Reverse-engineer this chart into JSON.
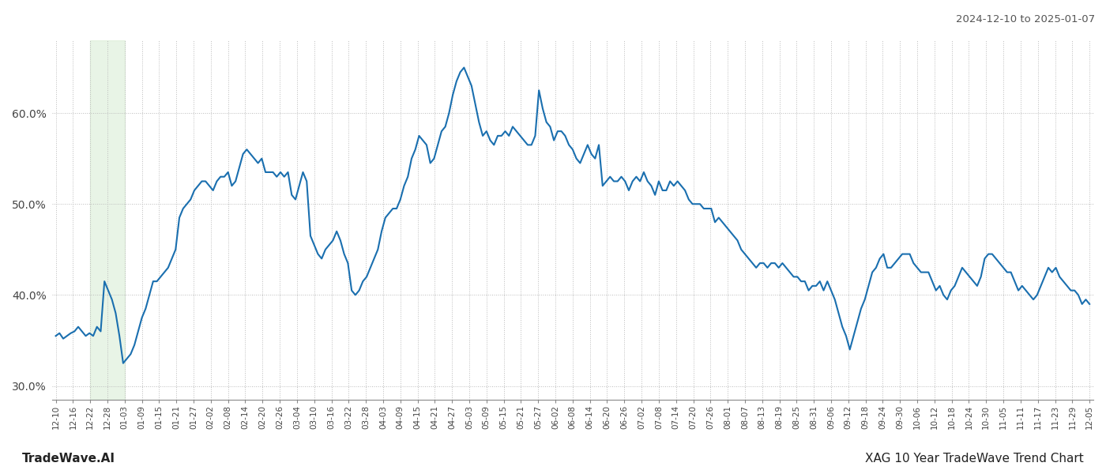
{
  "title_top_right": "2024-12-10 to 2025-01-07",
  "title_bottom_right": "XAG 10 Year TradeWave Trend Chart",
  "title_bottom_left": "TradeWave.AI",
  "line_color": "#1a6faf",
  "line_width": 1.5,
  "shade_color": "#d6ecd2",
  "shade_alpha": 0.55,
  "background_color": "#ffffff",
  "grid_color": "#bbbbbb",
  "ylim_min": 28.5,
  "ylim_max": 68.0,
  "yticks": [
    30.0,
    40.0,
    50.0,
    60.0
  ],
  "ytick_labels": [
    "30.0%",
    "40.0%",
    "50.0%",
    "60.0%"
  ],
  "x_labels": [
    "12-10",
    "12-16",
    "12-22",
    "12-28",
    "01-03",
    "01-09",
    "01-15",
    "01-21",
    "01-27",
    "02-02",
    "02-08",
    "02-14",
    "02-20",
    "02-26",
    "03-04",
    "03-10",
    "03-16",
    "03-22",
    "03-28",
    "04-03",
    "04-09",
    "04-15",
    "04-21",
    "04-27",
    "05-03",
    "05-09",
    "05-15",
    "05-21",
    "05-27",
    "06-02",
    "06-08",
    "06-14",
    "06-20",
    "06-26",
    "07-02",
    "07-08",
    "07-14",
    "07-20",
    "07-26",
    "08-01",
    "08-07",
    "08-13",
    "08-19",
    "08-25",
    "08-31",
    "09-06",
    "09-12",
    "09-18",
    "09-24",
    "09-30",
    "10-06",
    "10-12",
    "10-18",
    "10-24",
    "10-30",
    "11-05",
    "11-11",
    "11-17",
    "11-23",
    "11-29",
    "12-05"
  ],
  "shade_label_start": "12-22",
  "shade_label_end": "01-03",
  "y_values": [
    35.5,
    35.8,
    35.2,
    35.5,
    35.8,
    36.0,
    36.5,
    36.0,
    35.5,
    35.8,
    35.5,
    36.5,
    36.0,
    41.5,
    40.5,
    39.5,
    38.0,
    35.5,
    32.5,
    33.0,
    33.5,
    34.5,
    36.0,
    37.5,
    38.5,
    40.0,
    41.5,
    41.5,
    42.0,
    42.5,
    43.0,
    44.0,
    45.0,
    48.5,
    49.5,
    50.0,
    50.5,
    51.5,
    52.0,
    52.5,
    52.5,
    52.0,
    51.5,
    52.5,
    53.0,
    53.0,
    53.5,
    52.0,
    52.5,
    54.0,
    55.5,
    56.0,
    55.5,
    55.0,
    54.5,
    55.0,
    53.5,
    53.5,
    53.5,
    53.0,
    53.5,
    53.0,
    53.5,
    51.0,
    50.5,
    52.0,
    53.5,
    52.5,
    46.5,
    45.5,
    44.5,
    44.0,
    45.0,
    45.5,
    46.0,
    47.0,
    46.0,
    44.5,
    43.5,
    40.5,
    40.0,
    40.5,
    41.5,
    42.0,
    43.0,
    44.0,
    45.0,
    47.0,
    48.5,
    49.0,
    49.5,
    49.5,
    50.5,
    52.0,
    53.0,
    55.0,
    56.0,
    57.5,
    57.0,
    56.5,
    54.5,
    55.0,
    56.5,
    58.0,
    58.5,
    60.0,
    62.0,
    63.5,
    64.5,
    65.0,
    64.0,
    63.0,
    61.0,
    59.0,
    57.5,
    58.0,
    57.0,
    56.5,
    57.5,
    57.5,
    58.0,
    57.5,
    58.5,
    58.0,
    57.5,
    57.0,
    56.5,
    56.5,
    57.5,
    62.5,
    60.5,
    59.0,
    58.5,
    57.0,
    58.0,
    58.0,
    57.5,
    56.5,
    56.0,
    55.0,
    54.5,
    55.5,
    56.5,
    55.5,
    55.0,
    56.5,
    52.0,
    52.5,
    53.0,
    52.5,
    52.5,
    53.0,
    52.5,
    51.5,
    52.5,
    53.0,
    52.5,
    53.5,
    52.5,
    52.0,
    51.0,
    52.5,
    51.5,
    51.5,
    52.5,
    52.0,
    52.5,
    52.0,
    51.5,
    50.5,
    50.0,
    50.0,
    50.0,
    49.5,
    49.5,
    49.5,
    48.0,
    48.5,
    48.0,
    47.5,
    47.0,
    46.5,
    46.0,
    45.0,
    44.5,
    44.0,
    43.5,
    43.0,
    43.5,
    43.5,
    43.0,
    43.5,
    43.5,
    43.0,
    43.5,
    43.0,
    42.5,
    42.0,
    42.0,
    41.5,
    41.5,
    40.5,
    41.0,
    41.0,
    41.5,
    40.5,
    41.5,
    40.5,
    39.5,
    38.0,
    36.5,
    35.5,
    34.0,
    35.5,
    37.0,
    38.5,
    39.5,
    41.0,
    42.5,
    43.0,
    44.0,
    44.5,
    43.0,
    43.0,
    43.5,
    44.0,
    44.5,
    44.5,
    44.5,
    43.5,
    43.0,
    42.5,
    42.5,
    42.5,
    41.5,
    40.5,
    41.0,
    40.0,
    39.5,
    40.5,
    41.0,
    42.0,
    43.0,
    42.5,
    42.0,
    41.5,
    41.0,
    42.0,
    44.0,
    44.5,
    44.5,
    44.0,
    43.5,
    43.0,
    42.5,
    42.5,
    41.5,
    40.5,
    41.0,
    40.5,
    40.0,
    39.5,
    40.0,
    41.0,
    42.0,
    43.0,
    42.5,
    43.0,
    42.0,
    41.5,
    41.0,
    40.5,
    40.5,
    40.0,
    39.0,
    39.5,
    39.0
  ]
}
